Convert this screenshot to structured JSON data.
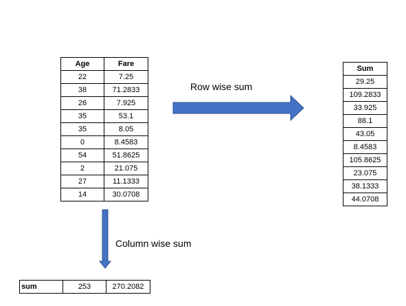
{
  "input_table": {
    "headers": [
      "Age",
      "Fare"
    ],
    "rows": [
      [
        "22",
        "7.25"
      ],
      [
        "38",
        "71.2833"
      ],
      [
        "26",
        "7.925"
      ],
      [
        "35",
        "53.1"
      ],
      [
        "35",
        "8.05"
      ],
      [
        "0",
        "8.4583"
      ],
      [
        "54",
        "51.8625"
      ],
      [
        "2",
        "21.075"
      ],
      [
        "27",
        "11.1333"
      ],
      [
        "14",
        "30.0708"
      ]
    ]
  },
  "row_sum": {
    "caption": "Row wise sum",
    "header": "Sum",
    "values": [
      "29.25",
      "109.2833",
      "33.925",
      "88.1",
      "43.05",
      "8.4583",
      "105.8625",
      "23.075",
      "38.1333",
      "44.0708"
    ]
  },
  "column_sum": {
    "caption": "Column wise sum",
    "label": "sum",
    "values": [
      "253",
      "270.2082"
    ]
  },
  "colors": {
    "arrow_fill": "#4472C4",
    "arrow_stroke": "#2F528F",
    "border": "#000000"
  }
}
